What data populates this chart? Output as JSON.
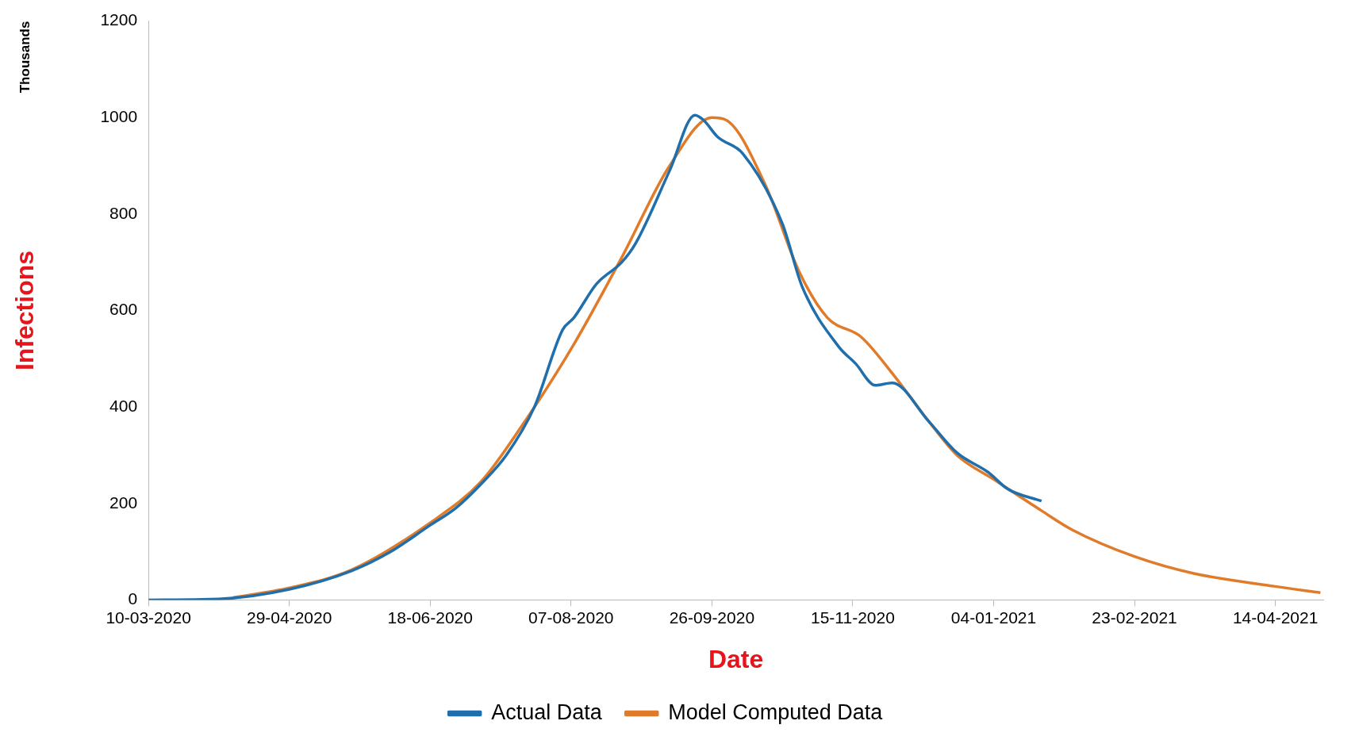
{
  "chart_data": {
    "type": "line",
    "xlabel": "Date",
    "ylabel": "Infections",
    "annotations": [
      "Thousands"
    ],
    "xlim": [
      "2020-03-10",
      "2021-05-01"
    ],
    "xticks": [
      {
        "value": "2020-03-10",
        "label": "10-03-2020"
      },
      {
        "value": "2020-04-29",
        "label": "29-04-2020"
      },
      {
        "value": "2020-06-18",
        "label": "18-06-2020"
      },
      {
        "value": "2020-08-07",
        "label": "07-08-2020"
      },
      {
        "value": "2020-09-26",
        "label": "26-09-2020"
      },
      {
        "value": "2020-11-15",
        "label": "15-11-2020"
      },
      {
        "value": "2021-01-04",
        "label": "04-01-2021"
      },
      {
        "value": "2021-02-23",
        "label": "23-02-2021"
      },
      {
        "value": "2021-04-14",
        "label": "14-04-2021"
      }
    ],
    "ylim": [
      0,
      1200
    ],
    "yticks": [
      0,
      200,
      400,
      600,
      800,
      1000,
      1200
    ],
    "grid": false,
    "legend": "bottom",
    "marker": "none",
    "line_style": "solid",
    "series": [
      {
        "name": "Actual Data",
        "color": "#1f6fad",
        "x": [
          "2020-03-10",
          "2020-04-04",
          "2020-04-29",
          "2020-05-21",
          "2020-06-04",
          "2020-06-18",
          "2020-06-27",
          "2020-07-06",
          "2020-07-15",
          "2020-07-25",
          "2020-08-04",
          "2020-08-08",
          "2020-08-16",
          "2020-08-25",
          "2020-08-30",
          "2020-09-11",
          "2020-09-20",
          "2020-09-23",
          "2020-09-28",
          "2020-10-07",
          "2020-10-21",
          "2020-10-28",
          "2020-11-10",
          "2020-11-16",
          "2020-11-23",
          "2020-11-29",
          "2020-12-12",
          "2020-12-22",
          "2021-01-02",
          "2021-01-09",
          "2021-01-21"
        ],
        "values": [
          0,
          2,
          22,
          60,
          100,
          155,
          190,
          240,
          300,
          400,
          560,
          585,
          655,
          700,
          740,
          890,
          1005,
          995,
          960,
          925,
          780,
          650,
          525,
          490,
          445,
          450,
          370,
          305,
          265,
          230,
          205
        ]
      },
      {
        "name": "Model Computed Data",
        "color": "#e07b2a",
        "x": [
          "2020-04-09",
          "2020-04-29",
          "2020-05-21",
          "2020-06-18",
          "2020-07-06",
          "2020-07-21",
          "2020-08-08",
          "2020-08-25",
          "2020-09-11",
          "2020-09-26",
          "2020-10-01",
          "2020-10-15",
          "2020-10-27",
          "2020-11-06",
          "2020-11-18",
          "2020-11-29",
          "2020-12-12",
          "2020-12-22",
          "2021-01-04",
          "2021-01-21",
          "2021-02-01",
          "2021-02-23",
          "2021-03-16",
          "2021-04-14",
          "2021-04-30"
        ],
        "values": [
          5,
          25,
          62,
          160,
          245,
          365,
          530,
          710,
          900,
          1000,
          995,
          860,
          680,
          585,
          545,
          470,
          370,
          300,
          250,
          185,
          145,
          90,
          55,
          28,
          15
        ]
      }
    ]
  }
}
